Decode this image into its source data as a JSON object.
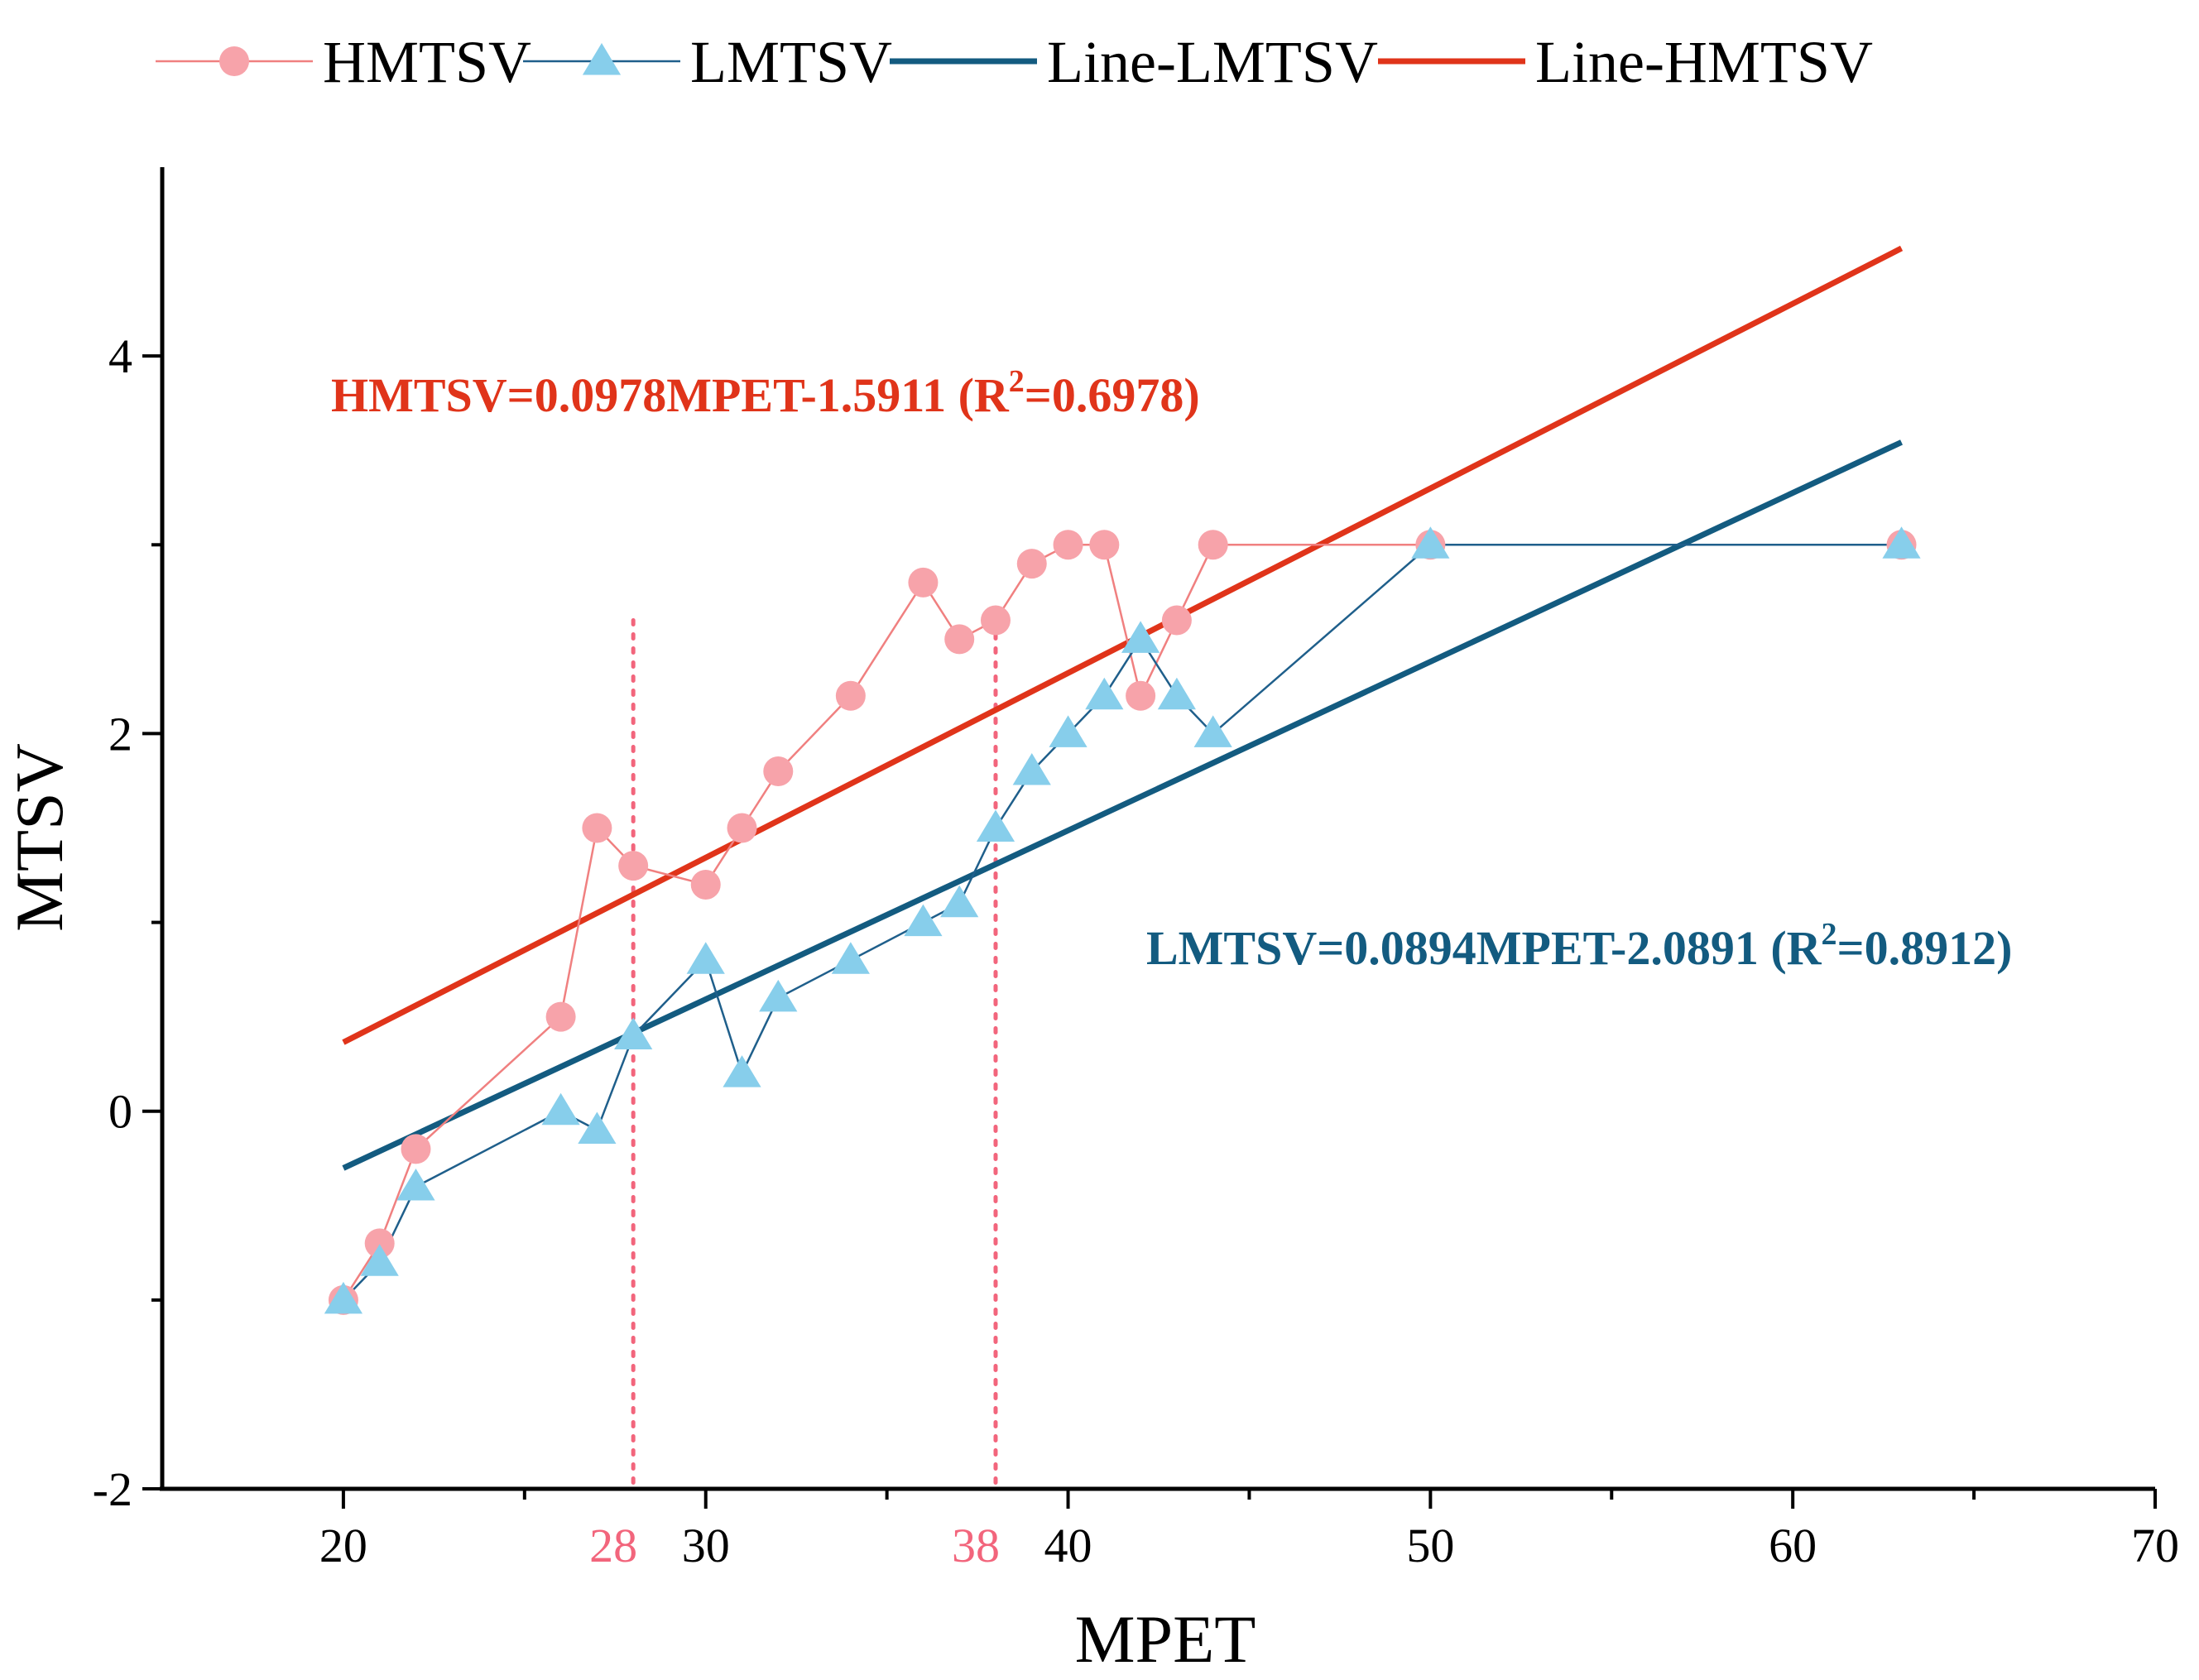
{
  "chart_data": {
    "type": "line",
    "xlabel": "MPET",
    "ylabel": "MTSV",
    "xlim": [
      15,
      70
    ],
    "ylim": [
      -2,
      5
    ],
    "x_ticks": [
      20,
      30,
      40,
      50,
      60,
      70
    ],
    "x_tick_labels": [
      "20",
      "30",
      "40",
      "50",
      "60",
      "70"
    ],
    "x_minor_ticks": [
      25,
      35,
      45,
      55,
      65
    ],
    "y_ticks": [
      -2,
      0,
      2,
      4
    ],
    "y_tick_labels": [
      "-2",
      "0",
      "2",
      "4"
    ],
    "y_minor_ticks": [
      -1,
      1,
      3
    ],
    "legend_position": "top",
    "series": [
      {
        "name": "HMTSV",
        "kind": "line+marker",
        "marker": "circle",
        "color": "#f08080",
        "marker_color": "#f7a3aa",
        "x": [
          20,
          21,
          22,
          26,
          27,
          28,
          30,
          31,
          32,
          34,
          36,
          37,
          38,
          39,
          40,
          41,
          42,
          43,
          44,
          50,
          63
        ],
        "y": [
          -1.0,
          -0.7,
          -0.2,
          0.5,
          1.5,
          1.3,
          1.2,
          1.5,
          1.8,
          2.2,
          2.8,
          2.5,
          2.6,
          2.9,
          3.0,
          3.0,
          2.2,
          2.6,
          3.0,
          3.0,
          3.0
        ]
      },
      {
        "name": "LMTSV",
        "kind": "line+marker",
        "marker": "triangle",
        "color": "#1f5f8b",
        "marker_color": "#87ceeb",
        "x": [
          20,
          21,
          22,
          26,
          27,
          28,
          30,
          31,
          32,
          34,
          36,
          37,
          38,
          39,
          40,
          41,
          42,
          43,
          44,
          50,
          63
        ],
        "y": [
          -1.0,
          -0.8,
          -0.4,
          0.0,
          -0.1,
          0.4,
          0.8,
          0.2,
          0.6,
          0.8,
          1.0,
          1.1,
          1.5,
          1.8,
          2.0,
          2.2,
          2.5,
          2.2,
          2.0,
          3.0,
          3.0
        ]
      },
      {
        "name": "Line-LMTSV",
        "kind": "fit",
        "color": "#135b80",
        "slope": 0.0894,
        "intercept": -2.0891,
        "x_range": [
          20,
          63
        ]
      },
      {
        "name": "Line-HMTSV",
        "kind": "fit",
        "color": "#e0341a",
        "slope": 0.0978,
        "intercept": -1.5911,
        "x_range": [
          20,
          63
        ]
      }
    ],
    "reference_lines": [
      {
        "x": 28,
        "label": "28",
        "color": "#f2657c"
      },
      {
        "x": 38,
        "label": "38",
        "color": "#f2657c"
      }
    ],
    "annotations": [
      {
        "name": "hmtsv-equation",
        "text": "HMTSV=0.0978MPET-1.5911  (R",
        "sup": "2",
        "tail": "=0.6978)",
        "color": "#e0341a"
      },
      {
        "name": "lmtsv-equation",
        "text": "LMTSV=0.0894MPET-2.0891  (R",
        "sup": "2",
        "tail": "=0.8912)",
        "color": "#135b80"
      }
    ]
  }
}
